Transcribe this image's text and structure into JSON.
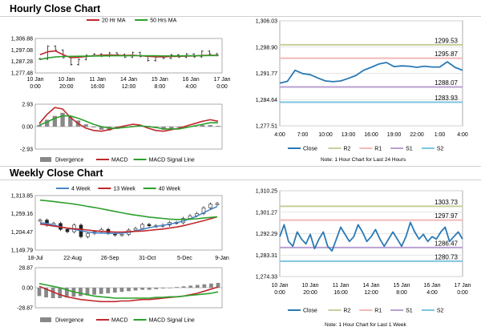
{
  "sections": {
    "hourly_title": "Hourly Close Chart",
    "weekly_title": "Weekly Close Chart"
  },
  "notes": {
    "hourly": "Note: 1 Hour Chart for Last 24 Hours",
    "weekly": "Note: 1 Hour Chart for Last 1 Week"
  },
  "colors": {
    "price": "#222222",
    "ma20": "#c0282d",
    "ma50": "#2ca02c",
    "week4": "#4a86c8",
    "week13": "#c0282d",
    "week40": "#2ca02c",
    "divergence": "#888888",
    "macd": "#c0282d",
    "signal": "#2ca02c",
    "close": "#2b79b4",
    "r2": "#c8cf9a",
    "r1": "#f3b9b9",
    "s1": "#b9a0d2",
    "s2": "#7ec4e0"
  },
  "chart_data": [
    {
      "id": "hourly_price",
      "type": "line",
      "x_ticks": [
        [
          "10 Jan",
          "0:00"
        ],
        [
          "10 Jan",
          "20:00"
        ],
        [
          "11 Jan",
          "16:00"
        ],
        [
          "14 Jan",
          "12:00"
        ],
        [
          "15 Jan",
          "8:00"
        ],
        [
          "16 Jan",
          "4:00"
        ],
        [
          "17 Jan",
          "0:00"
        ]
      ],
      "y_ticks": [
        "1,306.88",
        "1,297.08",
        "1,287.28",
        "1,277.48"
      ],
      "ylim": [
        1277.48,
        1306.88
      ],
      "legend": [
        "20 Hr MA",
        "50 Hrs MA"
      ],
      "series": [
        {
          "name": "Close",
          "values": [
            1289.5,
            1300.2,
            1296.8,
            1290.5,
            1284.6,
            1289.0,
            1292.5,
            1293.5,
            1291.8,
            1294.5,
            1293.2,
            1291.0,
            1294.8,
            1291.5,
            1288.0,
            1291.0,
            1290.0,
            1292.8,
            1291.0,
            1293.5,
            1291.2,
            1296.0,
            1293.8,
            1292.5
          ]
        },
        {
          "name": "20 Hr MA",
          "values": [
            1293.0,
            1295.5,
            1296.2,
            1293.0,
            1290.5,
            1290.8,
            1291.5,
            1292.2,
            1292.6,
            1292.8,
            1292.6,
            1292.4,
            1292.6,
            1292.2,
            1291.6,
            1291.3,
            1291.2,
            1291.5,
            1291.6,
            1291.9,
            1292.0,
            1292.4,
            1292.6,
            1292.5
          ]
        },
        {
          "name": "50 Hrs MA",
          "values": [
            1289.0,
            1290.3,
            1291.1,
            1291.5,
            1291.6,
            1291.7,
            1291.8,
            1291.9,
            1292.0,
            1292.1,
            1292.1,
            1292.1,
            1292.2,
            1292.2,
            1292.1,
            1292.1,
            1292.0,
            1292.0,
            1292.0,
            1292.1,
            1292.1,
            1292.2,
            1292.3,
            1292.3
          ]
        }
      ]
    },
    {
      "id": "hourly_macd",
      "type": "bar",
      "y_ticks": [
        "2.93",
        "0.00",
        "-2.93"
      ],
      "ylim": [
        -2.93,
        2.93
      ],
      "legend": [
        "Divergence",
        "MACD",
        "MACD Signal Line"
      ],
      "series": [
        {
          "name": "Divergence",
          "values": [
            0.2,
            0.9,
            1.4,
            1.8,
            1.4,
            0.8,
            0.3,
            -0.1,
            -0.4,
            -0.5,
            -0.3,
            -0.1,
            0.1,
            0.2,
            0.1,
            -0.2,
            -0.4,
            -0.3,
            -0.1,
            0.0,
            0.1,
            0.2,
            0.2,
            0.1
          ]
        },
        {
          "name": "MACD",
          "values": [
            0.4,
            1.6,
            2.5,
            2.3,
            1.2,
            0.4,
            -0.2,
            -0.5,
            -0.6,
            -0.4,
            -0.1,
            0.1,
            0.3,
            0.2,
            -0.2,
            -0.5,
            -0.6,
            -0.4,
            -0.2,
            0.1,
            0.4,
            0.7,
            0.9,
            0.7
          ]
        },
        {
          "name": "MACD Signal Line",
          "values": [
            0.2,
            0.6,
            1.1,
            1.4,
            1.4,
            1.1,
            0.7,
            0.3,
            0.0,
            -0.2,
            -0.2,
            -0.1,
            0.0,
            0.1,
            0.0,
            -0.1,
            -0.3,
            -0.3,
            -0.3,
            -0.1,
            0.1,
            0.3,
            0.5,
            0.5
          ]
        }
      ]
    },
    {
      "id": "hourly_close_levels",
      "type": "line",
      "x_ticks": [
        "4:00",
        "7:00",
        "10:00",
        "13:00",
        "16:00",
        "19:00",
        "22:00",
        "1:00",
        "4:00"
      ],
      "y_ticks": [
        "1,306.03",
        "1,298.90",
        "1,291.77",
        "1,284.64",
        "1,277.51"
      ],
      "ylim": [
        1277.51,
        1306.03
      ],
      "levels": [
        {
          "name": "R2",
          "value": 1299.53,
          "label": "1299.53"
        },
        {
          "name": "R1",
          "value": 1295.87,
          "label": "1295.87"
        },
        {
          "name": "S1",
          "value": 1288.07,
          "label": "1288.07"
        },
        {
          "name": "S2",
          "value": 1283.93,
          "label": "1283.93"
        }
      ],
      "legend": [
        "Close",
        "R2",
        "R1",
        "S1",
        "S2"
      ],
      "series": [
        {
          "name": "Close",
          "values": [
            1289.1,
            1289.6,
            1292.6,
            1291.7,
            1291.4,
            1290.5,
            1289.7,
            1289.5,
            1289.7,
            1290.4,
            1291.2,
            1292.6,
            1293.4,
            1294.3,
            1294.7,
            1293.6,
            1293.8,
            1293.7,
            1293.4,
            1293.7,
            1293.5,
            1293.5,
            1294.9,
            1293.4,
            1292.6
          ]
        }
      ]
    },
    {
      "id": "weekly_price",
      "type": "line",
      "x_ticks": [
        "18-Jul",
        "22-Aug",
        "26-Sep",
        "31-Oct",
        "5-Dec",
        "9-Jan"
      ],
      "y_ticks": [
        "1,313.85",
        "1,259.16",
        "1,204.47",
        "1,149.79"
      ],
      "ylim": [
        1149.79,
        1313.85
      ],
      "legend": [
        "4 Week",
        "13 Week",
        "40 Week"
      ],
      "series": [
        {
          "name": "Close",
          "values": [
            1240,
            1225,
            1230,
            1212,
            1205,
            1225,
            1190,
            1200,
            1205,
            1212,
            1200,
            1195,
            1197,
            1210,
            1215,
            1227,
            1223,
            1222,
            1225,
            1233,
            1232,
            1245,
            1253,
            1260,
            1277,
            1288,
            1290
          ]
        },
        {
          "name": "4 Week",
          "values": [
            1232,
            1230,
            1225,
            1220,
            1215,
            1212,
            1208,
            1204,
            1202,
            1201,
            1200,
            1200,
            1201,
            1203,
            1207,
            1212,
            1217,
            1221,
            1224,
            1228,
            1232,
            1237,
            1244,
            1252,
            1262,
            1272,
            1281
          ]
        },
        {
          "name": "13 Week",
          "values": [
            1228,
            1225,
            1222,
            1219,
            1216,
            1214,
            1212,
            1210,
            1208,
            1206,
            1205,
            1204,
            1204,
            1205,
            1206,
            1207,
            1209,
            1211,
            1213,
            1216,
            1219,
            1223,
            1228,
            1233,
            1238,
            1244,
            1250
          ]
        },
        {
          "name": "40 Week",
          "values": [
            1300,
            1298,
            1296,
            1293,
            1291,
            1288,
            1285,
            1281,
            1278,
            1274,
            1270,
            1266,
            1262,
            1258,
            1255,
            1252,
            1249,
            1247,
            1245,
            1243,
            1242,
            1242,
            1243,
            1244,
            1246,
            1248,
            1250
          ]
        }
      ]
    },
    {
      "id": "weekly_macd",
      "type": "bar",
      "y_ticks": [
        "28.87",
        "0.00",
        "-28.87"
      ],
      "ylim": [
        -28.87,
        28.87
      ],
      "legend": [
        "Divergence",
        "MACD",
        "MACD Signal Line"
      ],
      "series": [
        {
          "name": "Divergence",
          "values": [
            -12,
            -14,
            -15,
            -15,
            -14,
            -13,
            -12,
            -11,
            -10,
            -9,
            -8,
            -7,
            -6,
            -5,
            -4,
            -3,
            -3,
            -2,
            -1,
            0,
            1,
            2,
            3,
            4,
            5,
            6,
            7
          ]
        },
        {
          "name": "MACD",
          "values": [
            2,
            -2,
            -6,
            -10,
            -13,
            -15,
            -17,
            -18,
            -19,
            -20,
            -20,
            -20,
            -19,
            -19,
            -18,
            -17,
            -17,
            -16,
            -15,
            -14,
            -13,
            -12,
            -10,
            -8,
            -5,
            -2,
            1
          ]
        },
        {
          "name": "MACD Signal Line",
          "values": [
            6,
            4,
            2,
            0,
            -3,
            -6,
            -8,
            -10,
            -12,
            -13,
            -14,
            -15,
            -15,
            -15,
            -15,
            -15,
            -15,
            -14,
            -14,
            -13,
            -13,
            -12,
            -11,
            -10,
            -9,
            -8,
            -6
          ]
        }
      ]
    },
    {
      "id": "weekly_close_levels",
      "type": "line",
      "x_ticks": [
        [
          "10 Jan",
          "0:00"
        ],
        [
          "10 Jan",
          "20:00"
        ],
        [
          "11 Jan",
          "16:00"
        ],
        [
          "14 Jan",
          "12:00"
        ],
        [
          "15 Jan",
          "8:00"
        ],
        [
          "16 Jan",
          "4:00"
        ],
        [
          "17 Jan",
          "0:00"
        ]
      ],
      "y_ticks": [
        "1,310.25",
        "1,301.27",
        "1,292.29",
        "1,283.31",
        "1,274.33"
      ],
      "ylim": [
        1274.33,
        1310.25
      ],
      "levels": [
        {
          "name": "R2",
          "value": 1303.73,
          "label": "1303.73"
        },
        {
          "name": "R1",
          "value": 1297.97,
          "label": "1297.97"
        },
        {
          "name": "S1",
          "value": 1286.47,
          "label": "1286.47"
        },
        {
          "name": "S2",
          "value": 1280.73,
          "label": "1280.73"
        }
      ],
      "legend": [
        "Close",
        "R2",
        "R1",
        "S1",
        "S2"
      ],
      "series": [
        {
          "name": "Close",
          "values": [
            1291,
            1296,
            1289,
            1287,
            1293,
            1290,
            1288,
            1292,
            1286,
            1290,
            1293,
            1287,
            1285,
            1290,
            1295,
            1292,
            1289,
            1291,
            1296,
            1293,
            1289,
            1291,
            1294,
            1290,
            1287,
            1290,
            1293,
            1290,
            1287,
            1291,
            1297,
            1293,
            1290,
            1292,
            1289,
            1291,
            1290,
            1293,
            1295,
            1289,
            1291,
            1293,
            1290
          ]
        }
      ]
    }
  ]
}
